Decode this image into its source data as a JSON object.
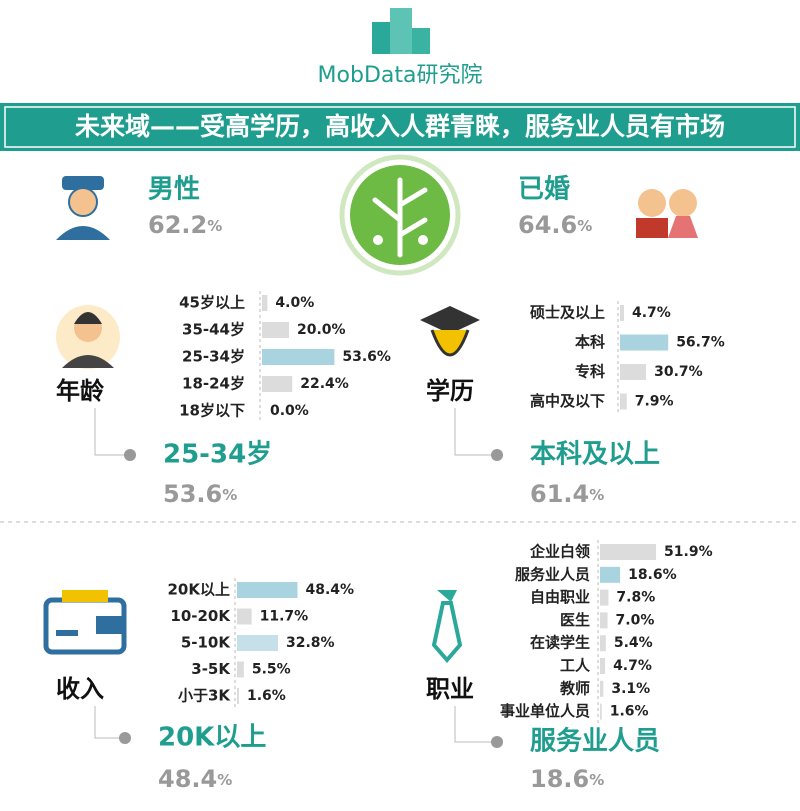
{
  "brand": "MobData研究院",
  "title": "未来域——受高学历，高收入人群青睐，服务业人员有市场",
  "stats": [
    {
      "label": "男性",
      "value": 62.2,
      "unit": "%"
    },
    {
      "label": "已婚",
      "value": 64.6,
      "unit": "%"
    }
  ],
  "panels": [
    {
      "label": "年龄",
      "categories": [
        "45岁以上",
        "35-44岁",
        "25-34岁",
        "18-24岁",
        "18岁以下"
      ],
      "values": [
        4.0,
        20.0,
        53.6,
        22.4,
        0.0
      ],
      "value_labels": [
        "4.0%",
        "20.0%",
        "53.6%",
        "22.4%",
        "0.0%"
      ],
      "colors": [
        "#dcdcdc",
        "#dcdcdc",
        "#a9d3df",
        "#dcdcdc",
        "#dcdcdc"
      ],
      "highlight": "25-34岁",
      "highlight_value": 53.6,
      "unit": "%"
    },
    {
      "label": "学历",
      "categories": [
        "硕士及以上",
        "本科",
        "专科",
        "高中及以下"
      ],
      "values": [
        4.7,
        56.7,
        30.7,
        7.9
      ],
      "value_labels": [
        "4.7%",
        "56.7%",
        "30.7%",
        "7.9%"
      ],
      "colors": [
        "#dcdcdc",
        "#a9d3df",
        "#dcdcdc",
        "#dcdcdc"
      ],
      "highlight": "本科及以上",
      "highlight_value": 61.4,
      "unit": "%"
    },
    {
      "label": "收入",
      "categories": [
        "20K以上",
        "10-20K",
        "5-10K",
        "3-5K",
        "小于3K"
      ],
      "values": [
        48.4,
        11.7,
        32.8,
        5.5,
        1.6
      ],
      "value_labels": [
        "48.4%",
        "11.7%",
        "32.8%",
        "5.5%",
        "1.6%"
      ],
      "colors": [
        "#a9d3df",
        "#dcdcdc",
        "#c5e0e8",
        "#dcdcdc",
        "#dcdcdc"
      ],
      "highlight": "20K以上",
      "highlight_value": 48.4,
      "unit": "%"
    },
    {
      "label": "职业",
      "categories": [
        "企业白领",
        "服务业人员",
        "自由职业",
        "医生",
        "在读学生",
        "工人",
        "教师",
        "事业单位人员"
      ],
      "values": [
        51.9,
        18.6,
        7.8,
        7.0,
        5.4,
        4.7,
        3.1,
        1.6
      ],
      "value_labels": [
        "51.9%",
        "18.6%",
        "7.8%",
        "7.0%",
        "5.4%",
        "4.7%",
        "3.1%",
        "1.6%"
      ],
      "colors": [
        "#dcdcdc",
        "#a9d3df",
        "#dcdcdc",
        "#dcdcdc",
        "#dcdcdc",
        "#dcdcdc",
        "#dcdcdc",
        "#dcdcdc"
      ],
      "highlight": "服务业人员",
      "highlight_value": 18.6,
      "unit": "%"
    }
  ]
}
